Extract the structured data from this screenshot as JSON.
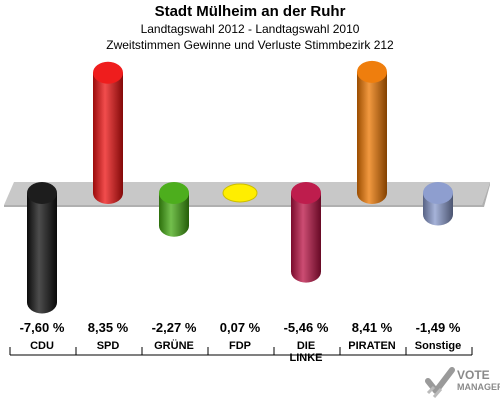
{
  "header": {
    "title": "Stadt Mülheim an der Ruhr",
    "subtitle": "Landtagswahl 2012 - Landtagswahl 2010",
    "subsubtitle": "Zweitstimmen Gewinne und Verluste Stimmbezirk 212"
  },
  "chart_data": {
    "type": "bar",
    "categories": [
      "CDU",
      "SPD",
      "GRÜNE",
      "FDP",
      "DIE LINKE",
      "PIRATEN",
      "Sonstige"
    ],
    "category_lines": [
      [
        "CDU"
      ],
      [
        "SPD"
      ],
      [
        "GRÜNE"
      ],
      [
        "FDP"
      ],
      [
        "DIE",
        "LINKE"
      ],
      [
        "PIRATEN"
      ],
      [
        "Sonstige"
      ]
    ],
    "values": [
      -7.6,
      8.35,
      -2.27,
      0.07,
      -5.46,
      8.41,
      -1.49
    ],
    "value_labels": [
      "-7,60 %",
      "8,35 %",
      "-2,27 %",
      "0,07 %",
      "-5,46 %",
      "8,41 %",
      "-1,49 %"
    ],
    "colors": [
      "#111111",
      "#ee1111",
      "#44aa11",
      "#ffee00",
      "#bb1144",
      "#ee7700",
      "#8899cc"
    ],
    "grid": false
  },
  "logo": {
    "line1": "VOTE",
    "line2": "MANAGER"
  }
}
